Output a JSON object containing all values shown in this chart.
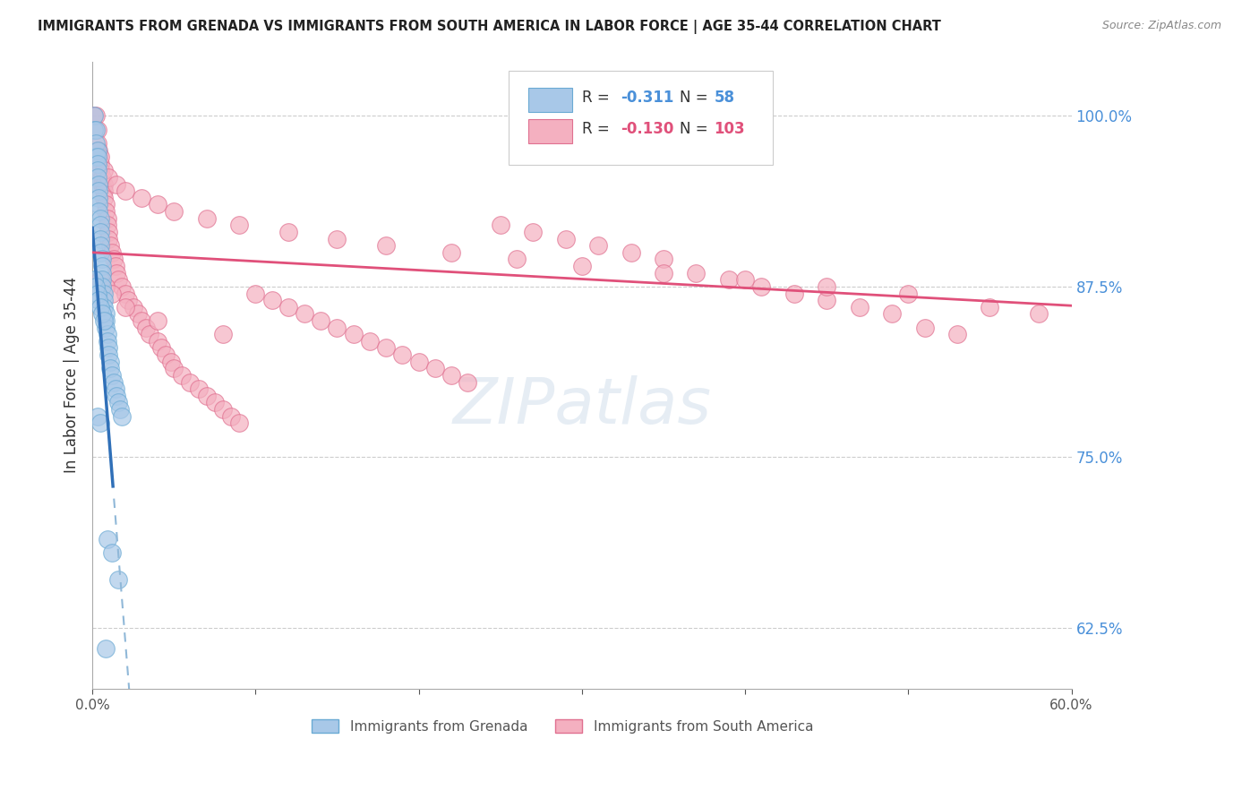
{
  "title": "IMMIGRANTS FROM GRENADA VS IMMIGRANTS FROM SOUTH AMERICA IN LABOR FORCE | AGE 35-44 CORRELATION CHART",
  "source": "Source: ZipAtlas.com",
  "ylabel": "In Labor Force | Age 35-44",
  "legend_title_blue": "Immigrants from Grenada",
  "legend_title_pink": "Immigrants from South America",
  "background_color": "#ffffff",
  "grid_color": "#d0d0d0",
  "title_color": "#222222",
  "source_color": "#888888",
  "right_axis_color": "#4a90d9",
  "xlim": [
    0.0,
    0.6
  ],
  "ylim": [
    0.58,
    1.04
  ],
  "blue_color": "#a8c8e8",
  "blue_edge": "#6aaad4",
  "blue_trend_color": "#3070b8",
  "pink_color": "#f4b0c0",
  "pink_edge": "#e07090",
  "pink_trend_color": "#e0507a",
  "R_blue": "-0.311",
  "N_blue": "58",
  "R_pink": "-0.130",
  "N_pink": "103",
  "blue_dots_x": [
    0.001,
    0.001,
    0.002,
    0.002,
    0.002,
    0.003,
    0.003,
    0.003,
    0.003,
    0.003,
    0.004,
    0.004,
    0.004,
    0.004,
    0.004,
    0.005,
    0.005,
    0.005,
    0.005,
    0.005,
    0.005,
    0.006,
    0.006,
    0.006,
    0.006,
    0.006,
    0.007,
    0.007,
    0.007,
    0.008,
    0.008,
    0.008,
    0.009,
    0.009,
    0.01,
    0.01,
    0.011,
    0.011,
    0.012,
    0.013,
    0.014,
    0.015,
    0.016,
    0.017,
    0.018,
    0.001,
    0.002,
    0.003,
    0.004,
    0.005,
    0.006,
    0.007,
    0.009,
    0.012,
    0.016,
    0.003,
    0.005,
    0.008
  ],
  "blue_dots_y": [
    1.0,
    0.99,
    0.99,
    0.98,
    0.97,
    0.975,
    0.97,
    0.965,
    0.96,
    0.955,
    0.95,
    0.945,
    0.94,
    0.935,
    0.93,
    0.925,
    0.92,
    0.915,
    0.91,
    0.905,
    0.9,
    0.895,
    0.89,
    0.885,
    0.88,
    0.875,
    0.87,
    0.865,
    0.86,
    0.855,
    0.85,
    0.845,
    0.84,
    0.835,
    0.83,
    0.825,
    0.82,
    0.815,
    0.81,
    0.805,
    0.8,
    0.795,
    0.79,
    0.785,
    0.78,
    0.88,
    0.875,
    0.87,
    0.865,
    0.86,
    0.855,
    0.85,
    0.69,
    0.68,
    0.66,
    0.78,
    0.775,
    0.61
  ],
  "pink_dots_x": [
    0.001,
    0.002,
    0.003,
    0.003,
    0.004,
    0.004,
    0.005,
    0.005,
    0.006,
    0.006,
    0.007,
    0.007,
    0.007,
    0.008,
    0.008,
    0.009,
    0.009,
    0.01,
    0.01,
    0.011,
    0.012,
    0.013,
    0.014,
    0.015,
    0.016,
    0.018,
    0.02,
    0.022,
    0.025,
    0.028,
    0.03,
    0.033,
    0.035,
    0.04,
    0.042,
    0.045,
    0.048,
    0.05,
    0.055,
    0.06,
    0.065,
    0.07,
    0.075,
    0.08,
    0.085,
    0.09,
    0.1,
    0.11,
    0.12,
    0.13,
    0.14,
    0.15,
    0.16,
    0.17,
    0.18,
    0.19,
    0.2,
    0.21,
    0.22,
    0.23,
    0.25,
    0.27,
    0.29,
    0.31,
    0.33,
    0.35,
    0.37,
    0.39,
    0.41,
    0.43,
    0.45,
    0.47,
    0.49,
    0.51,
    0.53,
    0.005,
    0.007,
    0.01,
    0.015,
    0.02,
    0.03,
    0.04,
    0.05,
    0.07,
    0.09,
    0.12,
    0.15,
    0.18,
    0.22,
    0.26,
    0.3,
    0.35,
    0.4,
    0.45,
    0.5,
    0.55,
    0.58,
    0.005,
    0.008,
    0.012,
    0.02,
    0.04,
    0.08
  ],
  "pink_dots_y": [
    1.0,
    1.0,
    0.99,
    0.98,
    0.975,
    0.97,
    0.965,
    0.96,
    0.955,
    0.95,
    0.95,
    0.945,
    0.94,
    0.935,
    0.93,
    0.925,
    0.92,
    0.915,
    0.91,
    0.905,
    0.9,
    0.895,
    0.89,
    0.885,
    0.88,
    0.875,
    0.87,
    0.865,
    0.86,
    0.855,
    0.85,
    0.845,
    0.84,
    0.835,
    0.83,
    0.825,
    0.82,
    0.815,
    0.81,
    0.805,
    0.8,
    0.795,
    0.79,
    0.785,
    0.78,
    0.775,
    0.87,
    0.865,
    0.86,
    0.855,
    0.85,
    0.845,
    0.84,
    0.835,
    0.83,
    0.825,
    0.82,
    0.815,
    0.81,
    0.805,
    0.92,
    0.915,
    0.91,
    0.905,
    0.9,
    0.895,
    0.885,
    0.88,
    0.875,
    0.87,
    0.865,
    0.86,
    0.855,
    0.845,
    0.84,
    0.97,
    0.96,
    0.955,
    0.95,
    0.945,
    0.94,
    0.935,
    0.93,
    0.925,
    0.92,
    0.915,
    0.91,
    0.905,
    0.9,
    0.895,
    0.89,
    0.885,
    0.88,
    0.875,
    0.87,
    0.86,
    0.855,
    0.88,
    0.875,
    0.87,
    0.86,
    0.85,
    0.84
  ]
}
